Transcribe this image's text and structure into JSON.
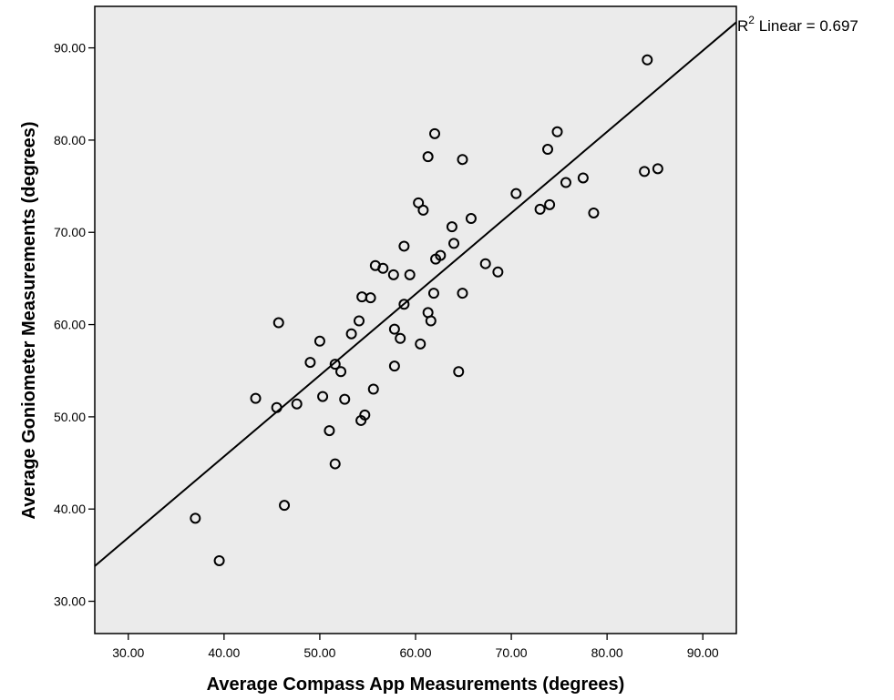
{
  "chart_data": {
    "type": "scatter",
    "xlabel": "Average Compass App Measurements (degrees)",
    "ylabel": "Average Goniometer Measurements (degrees)",
    "xlim": [
      26.5,
      93.5
    ],
    "ylim": [
      26.5,
      94.5
    ],
    "xticks": [
      30,
      40,
      50,
      60,
      70,
      80,
      90
    ],
    "yticks": [
      30,
      40,
      50,
      60,
      70,
      80,
      90
    ],
    "xtick_labels": [
      "30.00",
      "40.00",
      "50.00",
      "60.00",
      "70.00",
      "80.00",
      "90.00"
    ],
    "ytick_labels": [
      "30.00",
      "40.00",
      "50.00",
      "60.00",
      "70.00",
      "80.00",
      "90.00"
    ],
    "grid": false,
    "background": "#ebebeb",
    "marker": "open-circle",
    "points": [
      [
        37.0,
        39.0
      ],
      [
        39.5,
        34.4
      ],
      [
        43.3,
        52.0
      ],
      [
        45.5,
        51.0
      ],
      [
        45.7,
        60.2
      ],
      [
        46.3,
        40.4
      ],
      [
        47.6,
        51.4
      ],
      [
        49.0,
        55.9
      ],
      [
        50.0,
        58.2
      ],
      [
        50.3,
        52.2
      ],
      [
        51.0,
        48.5
      ],
      [
        51.6,
        55.7
      ],
      [
        51.6,
        44.9
      ],
      [
        52.2,
        54.9
      ],
      [
        52.6,
        51.9
      ],
      [
        53.3,
        59.0
      ],
      [
        54.1,
        60.4
      ],
      [
        54.3,
        49.6
      ],
      [
        54.4,
        63.0
      ],
      [
        54.7,
        50.2
      ],
      [
        55.3,
        62.9
      ],
      [
        55.6,
        53.0
      ],
      [
        55.8,
        66.4
      ],
      [
        56.6,
        66.1
      ],
      [
        57.7,
        65.4
      ],
      [
        57.8,
        59.5
      ],
      [
        57.8,
        55.5
      ],
      [
        58.4,
        58.5
      ],
      [
        58.8,
        62.2
      ],
      [
        58.8,
        68.5
      ],
      [
        59.4,
        65.4
      ],
      [
        60.3,
        73.2
      ],
      [
        60.5,
        57.9
      ],
      [
        60.8,
        72.4
      ],
      [
        61.3,
        61.3
      ],
      [
        61.3,
        78.2
      ],
      [
        61.6,
        60.4
      ],
      [
        61.9,
        63.4
      ],
      [
        62.0,
        80.7
      ],
      [
        62.1,
        67.1
      ],
      [
        62.6,
        67.5
      ],
      [
        63.8,
        70.6
      ],
      [
        64.0,
        68.8
      ],
      [
        64.5,
        54.9
      ],
      [
        64.9,
        63.4
      ],
      [
        64.9,
        77.9
      ],
      [
        65.8,
        71.5
      ],
      [
        67.3,
        66.6
      ],
      [
        68.6,
        65.7
      ],
      [
        70.5,
        74.2
      ],
      [
        73.0,
        72.5
      ],
      [
        73.8,
        79.0
      ],
      [
        74.0,
        73.0
      ],
      [
        74.8,
        80.9
      ],
      [
        75.7,
        75.4
      ],
      [
        77.5,
        75.9
      ],
      [
        78.6,
        72.1
      ],
      [
        83.9,
        76.6
      ],
      [
        84.2,
        88.7
      ],
      [
        85.3,
        76.9
      ]
    ],
    "fit_line": {
      "intercept": 10.5,
      "slope": 0.88
    },
    "annotation": {
      "prefix": "R",
      "superscript": "2",
      "suffix": " Linear = 0.697"
    }
  }
}
